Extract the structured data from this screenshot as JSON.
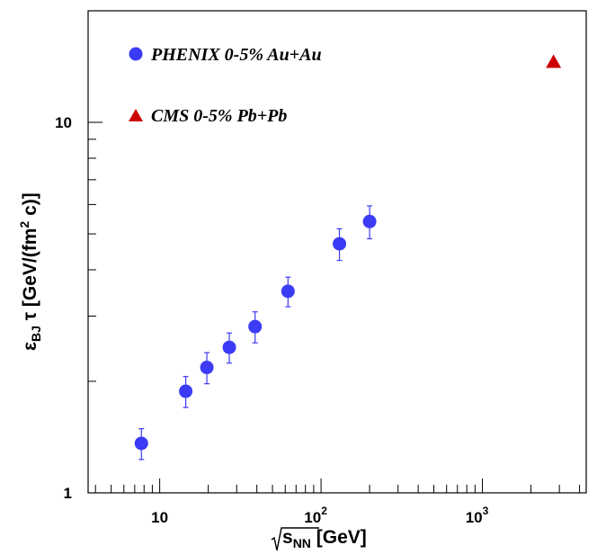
{
  "chart_data": {
    "type": "scatter",
    "x_scale": "log",
    "y_scale": "log",
    "xlim": [
      3.6,
      4400
    ],
    "ylim": [
      1,
      20
    ],
    "xlabel": {
      "prefix": "√",
      "var": "s",
      "sub": "NN",
      "unit": " [GeV]"
    },
    "ylabel": {
      "eps": "ε",
      "eps_sub": "BJ",
      "mid": " τ [GeV/(fm",
      "sup": "2",
      "end": " c)]"
    },
    "x_tick_labels": [
      {
        "value": 10,
        "text": "10"
      },
      {
        "value": 100,
        "base": "10",
        "exp": "2"
      },
      {
        "value": 1000,
        "base": "10",
        "exp": "3"
      }
    ],
    "y_tick_labels": [
      {
        "value": 1,
        "text": "1"
      },
      {
        "value": 10,
        "text": "10"
      }
    ],
    "grid": false,
    "legend_position": "top-left",
    "series": [
      {
        "name": "PHENIX 0-5% Au+Au",
        "marker": "circle",
        "color": "#3b3bf5",
        "points": [
          {
            "x": 7.7,
            "y": 1.36,
            "err": 0.13
          },
          {
            "x": 14.5,
            "y": 1.88,
            "err": 0.18
          },
          {
            "x": 19.6,
            "y": 2.18,
            "err": 0.21
          },
          {
            "x": 27,
            "y": 2.47,
            "err": 0.23
          },
          {
            "x": 39,
            "y": 2.81,
            "err": 0.27
          },
          {
            "x": 62.4,
            "y": 3.5,
            "err": 0.32
          },
          {
            "x": 130,
            "y": 4.7,
            "err": 0.46
          },
          {
            "x": 200,
            "y": 5.4,
            "err": 0.55
          }
        ]
      },
      {
        "name": "CMS 0-5% Pb+Pb",
        "marker": "triangle",
        "color": "#cc0000",
        "points": [
          {
            "x": 2760,
            "y": 14.5
          }
        ]
      }
    ]
  }
}
